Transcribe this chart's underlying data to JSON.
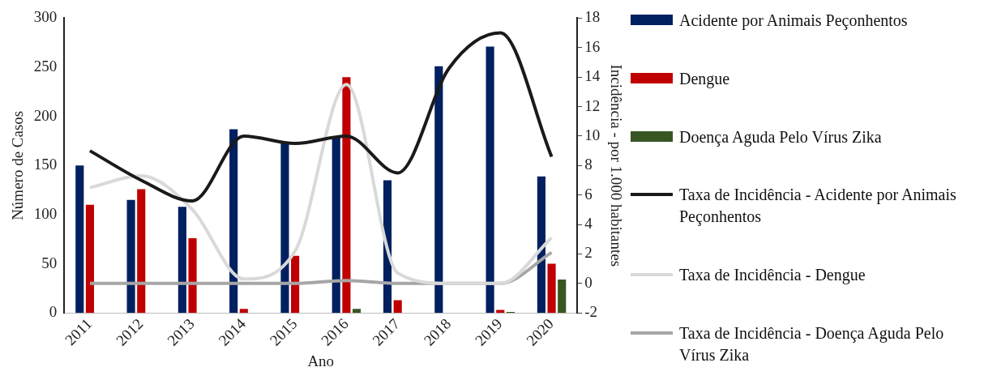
{
  "chart_data": {
    "type": "bar",
    "xlabel": "Ano",
    "ylabel": "Número de Casos",
    "y2label": "Incidência - por 1.000 habitantes",
    "categories": [
      "2011",
      "2012",
      "2013",
      "2014",
      "2015",
      "2016",
      "2017",
      "2018",
      "2019",
      "2020"
    ],
    "series": [
      {
        "name": "Acidente por Animais Peçonhentos",
        "color": "#002060",
        "values": [
          150,
          115,
          108,
          187,
          173,
          180,
          135,
          251,
          271,
          139
        ]
      },
      {
        "name": "Dengue",
        "color": "#c00000",
        "values": [
          110,
          126,
          76,
          4,
          58,
          240,
          13,
          0,
          3,
          50
        ]
      },
      {
        "name": "Doença Aguda Pelo Vírus Zika",
        "color": "#375623",
        "values": [
          0,
          0,
          0,
          0,
          0,
          4,
          0,
          0,
          1,
          34
        ]
      },
      {
        "name": "Taxa de Incidência - Acidente por Animais Peçonhentos",
        "type": "line",
        "axis": "y2",
        "color": "#1a1a1a",
        "values": [
          9.0,
          7.0,
          5.6,
          10.0,
          9.5,
          10.0,
          7.5,
          14.6,
          17.0,
          8.6
        ]
      },
      {
        "name": "Taxa de Incidência - Dengue",
        "type": "line",
        "axis": "y2",
        "color": "#d9d9d9",
        "values": [
          6.5,
          7.3,
          5.0,
          0.3,
          2.2,
          13.5,
          0.7,
          0.0,
          0.0,
          3.1
        ]
      },
      {
        "name": "Taxa de Incidência - Doença Aguda Pelo Vírus Zika",
        "type": "line",
        "axis": "y2",
        "color": "#a6a6a6",
        "values": [
          0,
          0,
          0,
          0,
          0,
          0.2,
          0,
          0,
          0,
          2.1
        ]
      }
    ],
    "ylim": [
      0,
      300
    ],
    "yticks": [
      0,
      50,
      100,
      150,
      200,
      250,
      300
    ],
    "y2lim": [
      -2,
      18
    ],
    "y2ticks": [
      -2,
      0,
      2,
      4,
      6,
      8,
      10,
      12,
      14,
      16,
      18
    ],
    "grid": false,
    "legend": "right",
    "marker": "none",
    "line_style": "solid"
  }
}
